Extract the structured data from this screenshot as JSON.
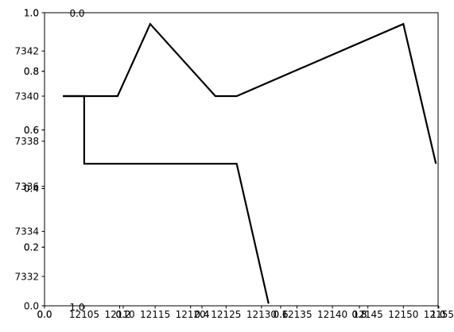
{
  "chart_data": {
    "type": "line",
    "title": "",
    "xlabel": "",
    "ylabel": "",
    "grid": false,
    "color": "#000000",
    "frame_axes": {
      "xlim": [
        0.0,
        1.0
      ],
      "ylim": [
        0.0,
        1.0
      ],
      "x_ticks": [
        "0.0",
        "0.2",
        "0.4",
        "0.6",
        "0.8",
        "1.0"
      ],
      "y_ticks": [
        "0.0",
        "0.2",
        "0.4",
        "0.6",
        "0.8",
        "1.0"
      ],
      "top_tick": "0.0",
      "left_tick": "1.0"
    },
    "data_axes": {
      "xlim": [
        12099.4,
        12154.9
      ],
      "ylim": [
        7330.7,
        7343.7
      ],
      "x_ticks": [
        "0.0",
        "12105",
        "12110",
        "12115",
        "12120",
        "12125",
        "12130",
        "12135",
        "12140",
        "12145",
        "12150",
        "12155"
      ],
      "x_tick_values": [
        12099.4,
        12105,
        12110,
        12115,
        12120,
        12125,
        12130,
        12135,
        12140,
        12145,
        12150,
        12155
      ],
      "y_ticks": [
        "7332",
        "7334",
        "7336",
        "7338",
        "7340",
        "7342"
      ],
      "y_tick_values": [
        7332,
        7334,
        7336,
        7338,
        7340,
        7342
      ],
      "secondary_x_ticks": [
        "0.2",
        "0.4",
        "0.6",
        "0.8",
        "1.0"
      ],
      "secondary_x_tick_values": [
        12110.5,
        12121.6,
        12132.7,
        12143.8,
        12154.9
      ],
      "secondary_y_ticks": [
        "0.2",
        "0.4",
        "0.6",
        "0.8",
        "1.0"
      ],
      "secondary_y_tick_values": [
        7333.3,
        7335.9,
        7338.5,
        7341.1,
        7343.7
      ]
    },
    "series": [
      {
        "x": [
          12102,
          12105,
          12105,
          12126.5,
          12131
        ],
        "y": [
          7340,
          7340,
          7337,
          7337,
          7330.8
        ]
      },
      {
        "x": [
          12102,
          12109.7,
          12114.3,
          12123.5,
          12126.5,
          12150,
          12154.6
        ],
        "y": [
          7340,
          7340,
          7343.2,
          7340,
          7340,
          7343.2,
          7337
        ]
      }
    ]
  }
}
